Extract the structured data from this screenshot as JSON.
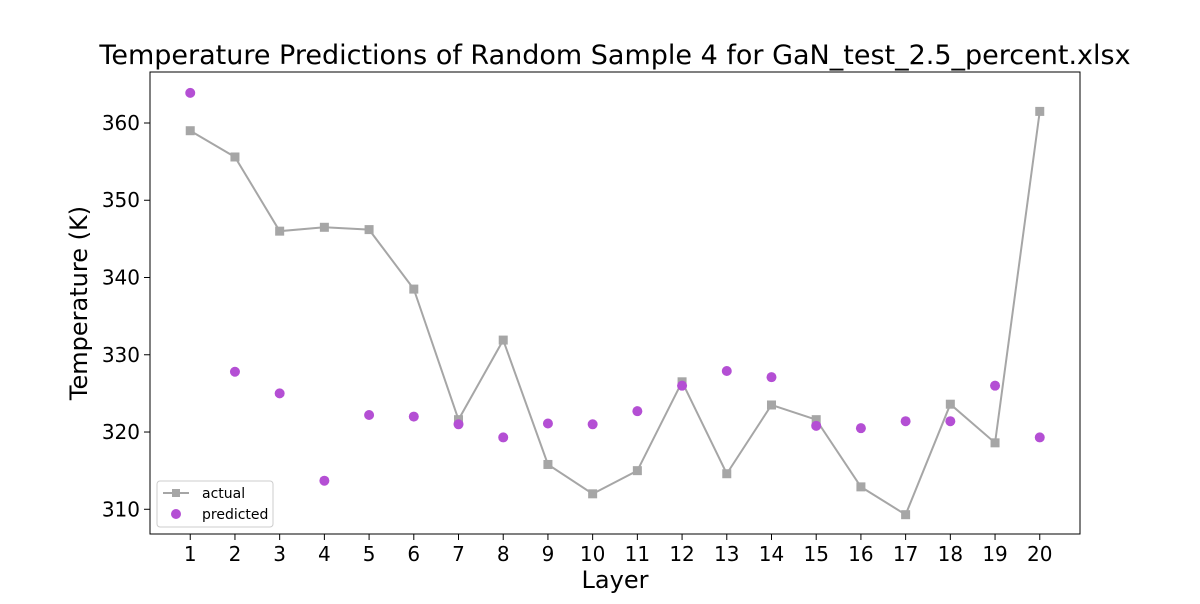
{
  "chart_data": {
    "type": "line",
    "title": "Temperature Predictions of Random Sample 4 for GaN_test_2.5_percent.xlsx",
    "xlabel": "Layer",
    "ylabel": "Temperature (K)",
    "x": [
      1,
      2,
      3,
      4,
      5,
      6,
      7,
      8,
      9,
      10,
      11,
      12,
      13,
      14,
      15,
      16,
      17,
      18,
      19,
      20
    ],
    "x_tick_labels": [
      "1",
      "2",
      "3",
      "4",
      "5",
      "6",
      "7",
      "8",
      "9",
      "10",
      "11",
      "12",
      "13",
      "14",
      "15",
      "16",
      "17",
      "18",
      "19",
      "20"
    ],
    "y_tick_labels": [
      "310",
      "320",
      "330",
      "340",
      "350",
      "360"
    ],
    "xlim": [
      0.1,
      20.9
    ],
    "ylim": [
      306.8,
      366.6
    ],
    "grid": false,
    "legend_position": "lower-left",
    "series": [
      {
        "name": "actual",
        "kind": "line-with-square-markers",
        "color": "#a6a6a6",
        "values": [
          359.0,
          355.6,
          346.0,
          346.5,
          346.2,
          338.5,
          321.6,
          331.9,
          315.8,
          312.0,
          315.0,
          326.5,
          314.6,
          323.5,
          321.6,
          312.9,
          309.3,
          323.6,
          318.6,
          361.5
        ]
      },
      {
        "name": "predicted",
        "kind": "scatter",
        "color": "#b44fd4",
        "values": [
          363.9,
          327.8,
          325.0,
          313.7,
          322.2,
          322.0,
          321.0,
          319.3,
          321.1,
          321.0,
          322.7,
          326.0,
          327.9,
          327.1,
          320.8,
          320.5,
          321.4,
          321.4,
          326.0,
          319.3
        ]
      }
    ]
  }
}
